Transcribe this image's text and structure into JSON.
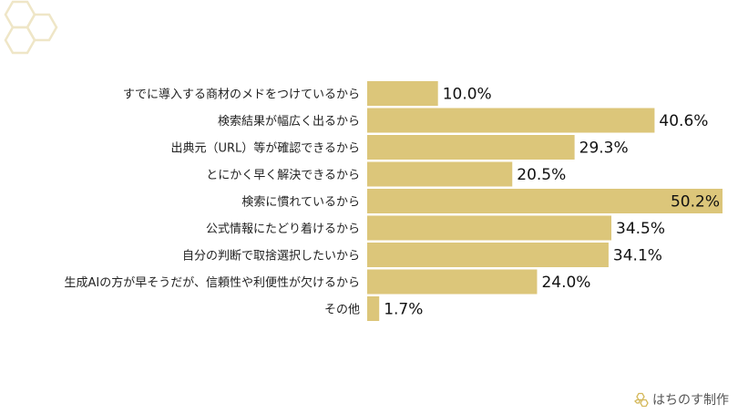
{
  "chart_data": {
    "type": "bar",
    "orientation": "horizontal",
    "categories": [
      "すでに導入する商材のメドをつけているから",
      "検索結果が幅広く出るから",
      "出典元（URL）等が確認できるから",
      "とにかく早く解決できるから",
      "検索に慣れているから",
      "公式情報にたどり着けるから",
      "自分の判断で取捨選択したいから",
      "生成AIの方が早そうだが、信頼性や利便性が欠けるから",
      "その他"
    ],
    "values": [
      10.0,
      40.6,
      29.3,
      20.5,
      50.2,
      34.5,
      34.1,
      24.0,
      1.7
    ],
    "value_labels": [
      "10.0%",
      "40.6%",
      "29.3%",
      "20.5%",
      "50.2%",
      "34.5%",
      "34.1%",
      "24.0%",
      "1.7%"
    ],
    "xlim": [
      0,
      50.2
    ],
    "bar_color": "#dcc67a",
    "grid": false,
    "legend": "none"
  },
  "brand": {
    "name": "はちのす制作",
    "logo_icon": "hexagon-logo-icon",
    "accent": "#d4b85a"
  },
  "decoration": {
    "icon": "honeycomb-decoration-icon",
    "color": "#efe6c7"
  }
}
